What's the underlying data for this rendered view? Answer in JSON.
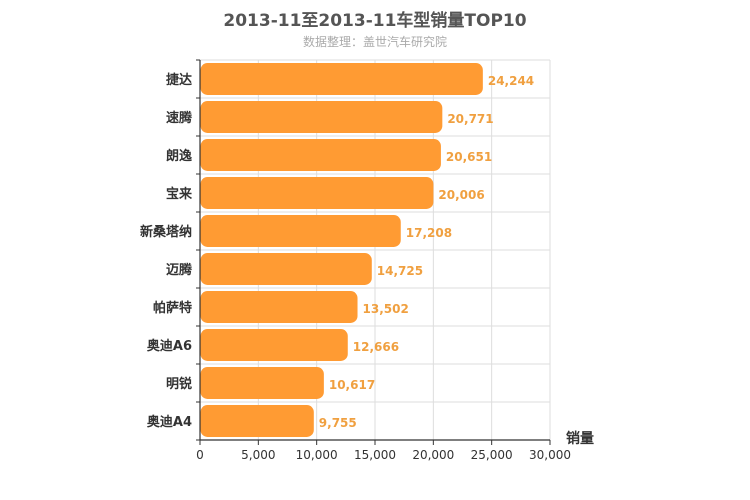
{
  "chart_data": {
    "type": "bar",
    "orientation": "horizontal",
    "title": "2013-11至2013-11车型销量TOP10",
    "subtitle": "数据整理：盖世汽车研究院",
    "xlabel": "销量",
    "ylabel": "",
    "categories": [
      "捷达",
      "速腾",
      "朗逸",
      "宝来",
      "新桑塔纳",
      "迈腾",
      "帕萨特",
      "奥迪A6",
      "明锐",
      "奥迪A4"
    ],
    "values": [
      24244,
      20771,
      20651,
      20006,
      17208,
      14725,
      13502,
      12666,
      10617,
      9755
    ],
    "value_labels": [
      "24,244",
      "20,771",
      "20,651",
      "20,006",
      "17,208",
      "14,725",
      "13,502",
      "12,666",
      "10,617",
      "9,755"
    ],
    "xlim": [
      0,
      30000
    ],
    "xticks": [
      0,
      5000,
      10000,
      15000,
      20000,
      25000,
      30000
    ],
    "xtick_labels": [
      "0",
      "5,000",
      "10,000",
      "15,000",
      "20,000",
      "25,000",
      "30,000"
    ],
    "grid": true,
    "legend": "none",
    "colors": {
      "bar": "#ff9b33",
      "data_label": "#f0a040",
      "grid": "#dddddd",
      "axis": "#333333"
    }
  }
}
